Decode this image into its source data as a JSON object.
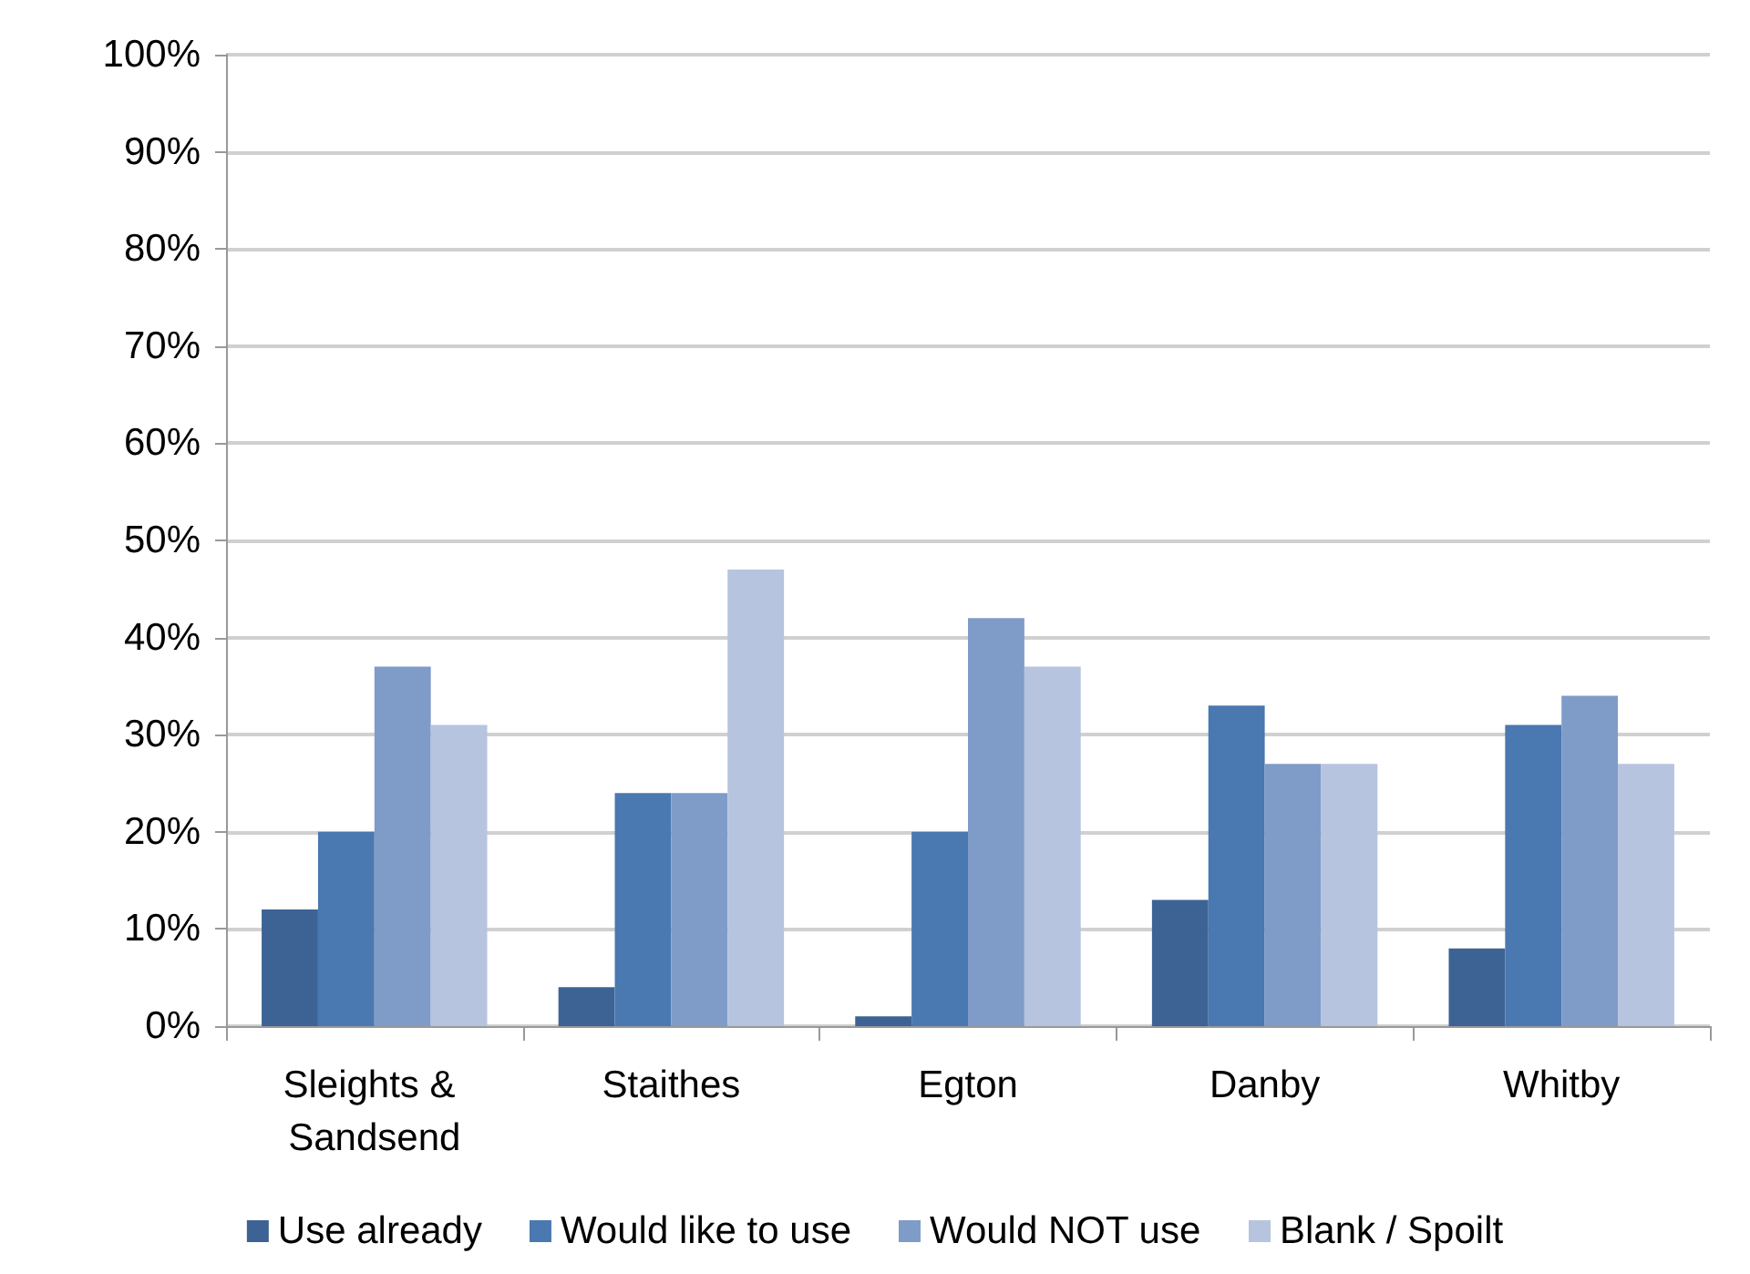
{
  "chart_data": {
    "type": "bar",
    "categories": [
      "Sleights & Sandsend",
      "Staithes",
      "Egton",
      "Danby",
      "Whitby"
    ],
    "series": [
      {
        "name": "Use already",
        "color": "#3d6395",
        "values": [
          12,
          4,
          1,
          13,
          8
        ]
      },
      {
        "name": "Would like to use",
        "color": "#4a78b0",
        "values": [
          20,
          24,
          20,
          33,
          31
        ]
      },
      {
        "name": "Would NOT use",
        "color": "#7f9cc8",
        "values": [
          37,
          24,
          42,
          27,
          34
        ]
      },
      {
        "name": "Blank / Spoilt",
        "color": "#b6c4df",
        "values": [
          31,
          47,
          37,
          27,
          27
        ]
      }
    ],
    "ylim": [
      0,
      100
    ],
    "yticks": [
      {
        "value": 0,
        "label": "0%"
      },
      {
        "value": 10,
        "label": "10%"
      },
      {
        "value": 20,
        "label": "20%"
      },
      {
        "value": 30,
        "label": "30%"
      },
      {
        "value": 40,
        "label": "40%"
      },
      {
        "value": 50,
        "label": "50%"
      },
      {
        "value": 60,
        "label": "60%"
      },
      {
        "value": 70,
        "label": "70%"
      },
      {
        "value": 80,
        "label": "80%"
      },
      {
        "value": 90,
        "label": "90%"
      },
      {
        "value": 100,
        "label": "100%"
      }
    ],
    "grid": "y",
    "legend": "bottom"
  }
}
